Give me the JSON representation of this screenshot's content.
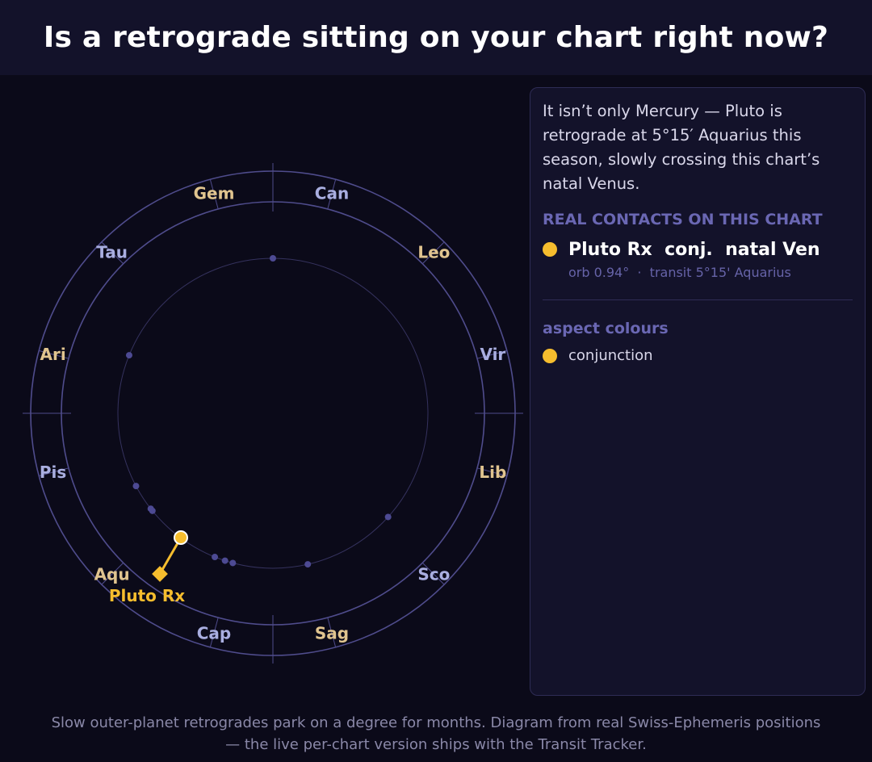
{
  "title": "Is a retrograde sitting on your chart right now?",
  "wheel": {
    "signs": [
      {
        "name": "Ari",
        "color": "#e0c48f"
      },
      {
        "name": "Tau",
        "color": "#a9aee0"
      },
      {
        "name": "Gem",
        "color": "#e0c48f"
      },
      {
        "name": "Can",
        "color": "#a9aee0"
      },
      {
        "name": "Leo",
        "color": "#e0c48f"
      },
      {
        "name": "Vir",
        "color": "#a9aee0"
      },
      {
        "name": "Lib",
        "color": "#e0c48f"
      },
      {
        "name": "Sco",
        "color": "#a9aee0"
      },
      {
        "name": "Sag",
        "color": "#e0c48f"
      },
      {
        "name": "Cap",
        "color": "#a9aee0"
      },
      {
        "name": "Aqu",
        "color": "#e0c48f"
      },
      {
        "name": "Pis",
        "color": "#a9aee0"
      }
    ],
    "transit": {
      "label": "Pluto Rx",
      "longitude_deg": 305.25,
      "color": "#f6bd2e"
    }
  },
  "panel": {
    "intro": "It isn’t only Mercury — Pluto is retrograde at 5°15′ Aquarius this season, slowly crossing this chart’s natal Venus.",
    "contacts_title": "REAL CONTACTS ON THIS CHART",
    "contact": {
      "main": "Pluto Rx  conj.  natal Ven",
      "sub": "orb 0.94°  ·  transit 5°15' Aquarius",
      "color": "#f6bd2e"
    },
    "legend_title": "aspect colours",
    "legend": [
      {
        "label": "conjunction",
        "color": "#f6bd2e"
      }
    ]
  },
  "footer": {
    "line1": "Slow outer-planet retrogrades park on a degree for months. Diagram from real Swiss-Ephemeris positions",
    "line2": "— the live per-chart version ships with the Transit Tracker."
  }
}
